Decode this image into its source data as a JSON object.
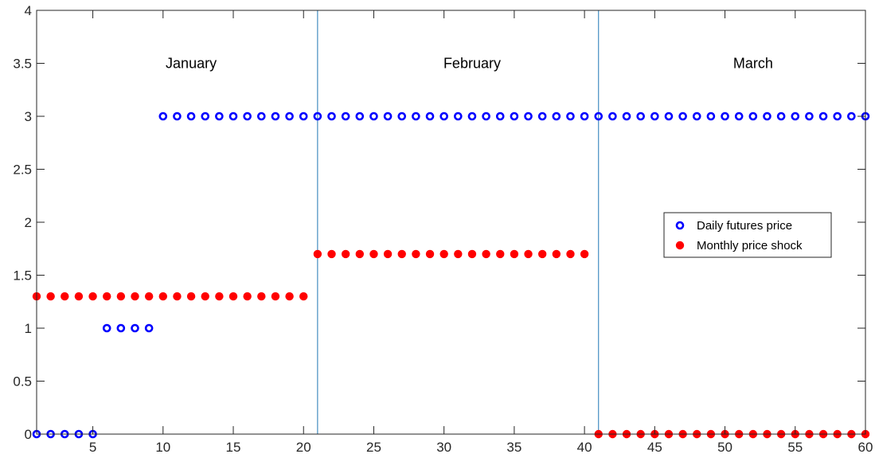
{
  "chart_data": {
    "type": "scatter",
    "title": "",
    "xlabel": "",
    "ylabel": "",
    "xlim": [
      1,
      60
    ],
    "ylim": [
      0,
      4
    ],
    "grid": false,
    "legend_position": "right",
    "x_ticks": [
      5,
      10,
      15,
      20,
      25,
      30,
      35,
      40,
      45,
      50,
      55,
      60
    ],
    "y_ticks": [
      0,
      0.5,
      1,
      1.5,
      2,
      2.5,
      3,
      3.5,
      4
    ],
    "x_tick_labels": [
      "5",
      "10",
      "15",
      "20",
      "25",
      "30",
      "35",
      "40",
      "45",
      "50",
      "55",
      "60"
    ],
    "y_tick_labels": [
      "0",
      "0.5",
      "1",
      "1.5",
      "2",
      "2.5",
      "3",
      "3.5",
      "4"
    ],
    "vertical_lines": [
      21,
      41
    ],
    "annotations": [
      {
        "text": "January",
        "x": 12,
        "y": 3.5
      },
      {
        "text": "February",
        "x": 32,
        "y": 3.5
      },
      {
        "text": "March",
        "x": 52,
        "y": 3.5
      }
    ],
    "series": [
      {
        "name": "Daily futures price",
        "marker": "open-circle",
        "color": "#0000ff",
        "x": [
          1,
          2,
          3,
          4,
          5,
          6,
          7,
          8,
          9,
          10,
          11,
          12,
          13,
          14,
          15,
          16,
          17,
          18,
          19,
          20,
          21,
          22,
          23,
          24,
          25,
          26,
          27,
          28,
          29,
          30,
          31,
          32,
          33,
          34,
          35,
          36,
          37,
          38,
          39,
          40,
          41,
          42,
          43,
          44,
          45,
          46,
          47,
          48,
          49,
          50,
          51,
          52,
          53,
          54,
          55,
          56,
          57,
          58,
          59,
          60
        ],
        "y": [
          0,
          0,
          0,
          0,
          0,
          1,
          1,
          1,
          1,
          3,
          3,
          3,
          3,
          3,
          3,
          3,
          3,
          3,
          3,
          3,
          3,
          3,
          3,
          3,
          3,
          3,
          3,
          3,
          3,
          3,
          3,
          3,
          3,
          3,
          3,
          3,
          3,
          3,
          3,
          3,
          3,
          3,
          3,
          3,
          3,
          3,
          3,
          3,
          3,
          3,
          3,
          3,
          3,
          3,
          3,
          3,
          3,
          3,
          3,
          3
        ]
      },
      {
        "name": "Monthly price shock",
        "marker": "filled-circle",
        "color": "#ff0000",
        "x": [
          1,
          2,
          3,
          4,
          5,
          6,
          7,
          8,
          9,
          10,
          11,
          12,
          13,
          14,
          15,
          16,
          17,
          18,
          19,
          20,
          21,
          22,
          23,
          24,
          25,
          26,
          27,
          28,
          29,
          30,
          31,
          32,
          33,
          34,
          35,
          36,
          37,
          38,
          39,
          40,
          41,
          42,
          43,
          44,
          45,
          46,
          47,
          48,
          49,
          50,
          51,
          52,
          53,
          54,
          55,
          56,
          57,
          58,
          59,
          60
        ],
        "y": [
          1.3,
          1.3,
          1.3,
          1.3,
          1.3,
          1.3,
          1.3,
          1.3,
          1.3,
          1.3,
          1.3,
          1.3,
          1.3,
          1.3,
          1.3,
          1.3,
          1.3,
          1.3,
          1.3,
          1.3,
          1.7,
          1.7,
          1.7,
          1.7,
          1.7,
          1.7,
          1.7,
          1.7,
          1.7,
          1.7,
          1.7,
          1.7,
          1.7,
          1.7,
          1.7,
          1.7,
          1.7,
          1.7,
          1.7,
          1.7,
          0,
          0,
          0,
          0,
          0,
          0,
          0,
          0,
          0,
          0,
          0,
          0,
          0,
          0,
          0,
          0,
          0,
          0,
          0,
          0
        ]
      }
    ],
    "colors": {
      "axis": "#262626",
      "vline": "#1f77b4",
      "legend_border": "#262626"
    }
  }
}
